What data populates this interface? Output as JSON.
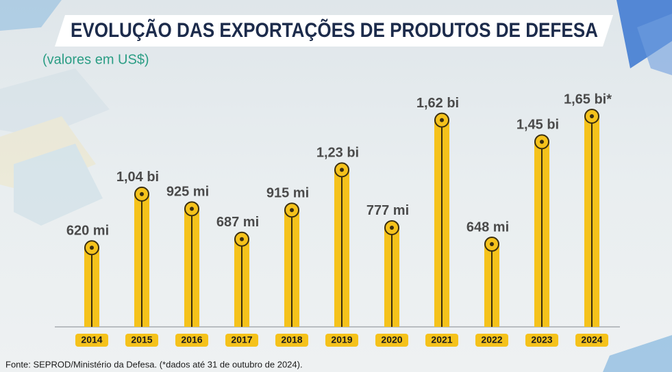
{
  "chart_data": {
    "type": "bar",
    "title": "EVOLUÇÃO DAS EXPORTAÇÕES DE PRODUTOS DE DEFESA",
    "subtitle": "(valores em US$)",
    "categories": [
      "2014",
      "2015",
      "2016",
      "2017",
      "2018",
      "2019",
      "2020",
      "2021",
      "2022",
      "2023",
      "2024"
    ],
    "values": [
      620,
      1040,
      925,
      687,
      915,
      1230,
      777,
      1620,
      648,
      1450,
      1650
    ],
    "value_labels": [
      "620 mi",
      "1,04 bi",
      "925 mi",
      "687 mi",
      "915 mi",
      "1,23 bi",
      "777 mi",
      "1,62 bi",
      "648 mi",
      "1,45 bi",
      "1,65 bi*"
    ],
    "color": "#f5c21b",
    "source": "Fonte: SEPROD/Ministério da Defesa. (*dados até 31 de outubro de 2024)."
  }
}
